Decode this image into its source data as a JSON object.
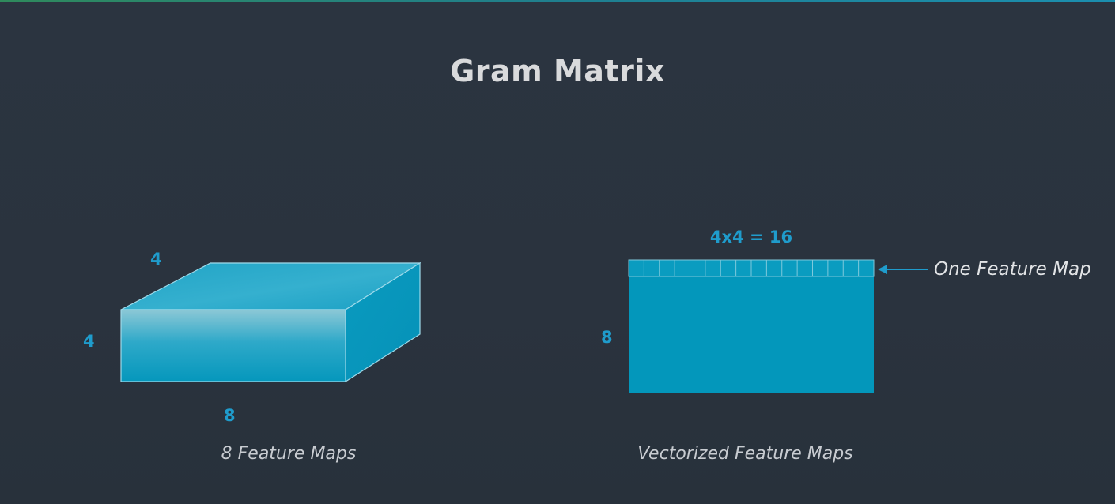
{
  "title": "Gram Matrix",
  "left_figure": {
    "depth_label": "4",
    "height_label": "4",
    "width_label": "8",
    "caption": "8 Feature Maps"
  },
  "right_figure": {
    "width_label": "4x4 = 16",
    "height_label": "8",
    "row_callout": "One Feature Map",
    "caption": "Vectorized Feature Maps",
    "cells_in_row": 16
  },
  "colors": {
    "background": "#2a333e",
    "accent": "#1f9ccc",
    "box_fill": "#0397bb",
    "box_edge": "#8fd3e6",
    "title_text": "#d9dadc",
    "caption_text": "#c8ccd1"
  }
}
